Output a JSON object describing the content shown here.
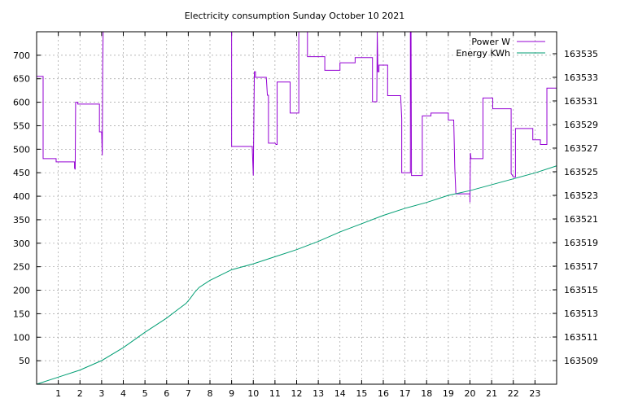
{
  "chart_data": {
    "type": "line",
    "title": "Electricity consumption Sunday October 10 2021",
    "xlabel": "",
    "ylabel": "",
    "y2label": "",
    "xlim": [
      0,
      24
    ],
    "ylim": [
      0,
      750
    ],
    "y2lim": [
      163507,
      163536.86
    ],
    "x_ticks": [
      1,
      2,
      3,
      4,
      5,
      6,
      7,
      8,
      9,
      10,
      11,
      12,
      13,
      14,
      15,
      16,
      17,
      18,
      19,
      20,
      21,
      22,
      23
    ],
    "y_ticks": [
      50,
      100,
      150,
      200,
      250,
      300,
      350,
      400,
      450,
      500,
      550,
      600,
      650,
      700
    ],
    "y2_ticks": [
      163509,
      163511,
      163513,
      163515,
      163517,
      163519,
      163521,
      163523,
      163525,
      163527,
      163529,
      163531,
      163533,
      163535
    ],
    "grid": true,
    "legend_position": "top-right",
    "colors": {
      "power": "#9400d3",
      "energy": "#009e73"
    },
    "series": [
      {
        "name": "Power W",
        "axis": "left",
        "x": [
          0,
          0.3,
          0.3,
          0.9,
          0.9,
          1.75,
          1.75,
          1.78,
          1.8,
          1.9,
          1.9,
          2.9,
          2.9,
          3.0,
          3.03,
          3.05,
          3.07,
          9.0,
          9.0,
          9.9,
          9.95,
          10.0,
          10.05,
          10.1,
          10.1,
          10.6,
          10.65,
          10.7,
          10.7,
          11.0,
          11.05,
          11.1,
          11.1,
          11.7,
          11.7,
          12.1,
          12.1,
          12.5,
          12.5,
          13.3,
          13.3,
          14.0,
          14.0,
          14.7,
          14.7,
          15.5,
          15.5,
          15.7,
          15.72,
          15.75,
          15.8,
          15.8,
          16.2,
          16.2,
          16.8,
          16.85,
          16.85,
          17.25,
          17.25,
          17.28,
          17.3,
          17.35,
          17.35,
          17.8,
          17.8,
          18.2,
          18.2,
          19.0,
          19.0,
          19.25,
          19.3,
          19.35,
          19.35,
          20.0,
          20.0,
          20.02,
          20.05,
          20.1,
          20.1,
          20.6,
          20.6,
          21.05,
          21.05,
          21.9,
          21.9,
          21.95,
          22.0,
          22.1,
          22.1,
          22.9,
          22.9,
          23.25,
          23.25,
          23.55,
          23.55,
          24
        ],
        "values": [
          655,
          655,
          480,
          480,
          473,
          473,
          460,
          457,
          600,
          600,
          596,
          596,
          537,
          537,
          487,
          680,
          750,
          750,
          506,
          506,
          506,
          444,
          665,
          665,
          653,
          653,
          615,
          615,
          513,
          513,
          510,
          510,
          643,
          643,
          577,
          577,
          750,
          750,
          697,
          697,
          668,
          668,
          684,
          684,
          695,
          695,
          601,
          601,
          750,
          665,
          665,
          679,
          679,
          614,
          614,
          565,
          450,
          450,
          750,
          750,
          444,
          444,
          444,
          444,
          571,
          571,
          577,
          577,
          562,
          562,
          460,
          405,
          405,
          405,
          387,
          492,
          480,
          480,
          480,
          480,
          609,
          609,
          586,
          586,
          448,
          445,
          441,
          441,
          544,
          544,
          520,
          520,
          510,
          510,
          630,
          630
        ]
      },
      {
        "name": "Energy KWh",
        "axis": "right",
        "x": [
          0,
          1,
          2,
          3,
          4,
          5,
          6,
          6.5,
          6.9,
          7.1,
          7.3,
          7.5,
          8,
          9,
          10,
          11,
          12,
          13,
          14,
          15,
          16,
          17,
          18,
          19,
          20,
          21,
          22,
          23,
          24
        ],
        "values": [
          163507.0,
          163507.6,
          163508.2,
          163509.0,
          163510.1,
          163511.4,
          163512.6,
          163513.3,
          163513.85,
          163514.3,
          163514.8,
          163515.2,
          163515.8,
          163516.7,
          163517.2,
          163517.8,
          163518.4,
          163519.1,
          163519.9,
          163520.6,
          163521.3,
          163521.9,
          163522.4,
          163523.0,
          163523.4,
          163523.9,
          163524.4,
          163524.9,
          163525.5
        ]
      }
    ]
  }
}
